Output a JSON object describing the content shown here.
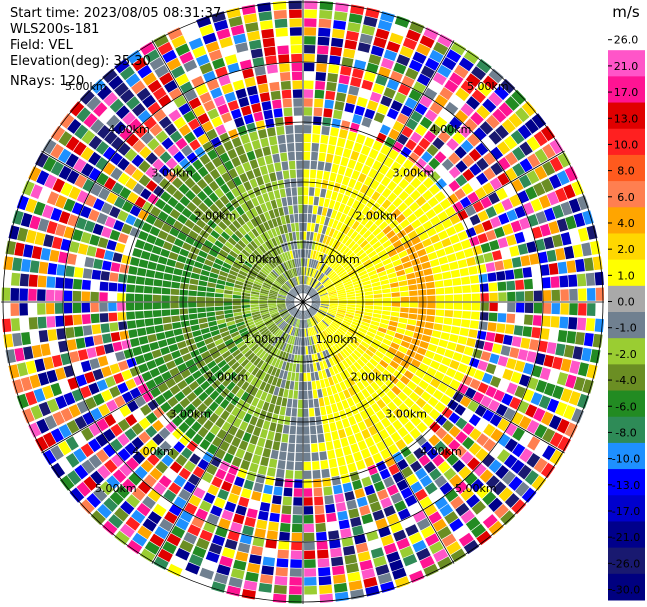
{
  "header": {
    "start_time": "Start time: 2023/08/05 08:31:37",
    "instrument": "WLS200s-181",
    "field": "Field: VEL",
    "elevation": "Elevation(deg): 35.30",
    "nrays": "NRays: 120"
  },
  "range_rings": [
    "1.00km",
    "2.00km",
    "3.00km",
    "4.00km",
    "5.00km"
  ],
  "colorbar": {
    "unit": "m/s",
    "ticks": [
      "26.0",
      "21.0",
      "17.0",
      "13.0",
      "10.0",
      "8.0",
      "6.0",
      "4.0",
      "2.0",
      "1.0",
      "0.0",
      "-1.0",
      "-2.0",
      "-4.0",
      "-6.0",
      "-8.0",
      "-10.0",
      "-13.0",
      "-17.0",
      "-21.0",
      "-26.0",
      "-30.0"
    ],
    "colors": [
      "#ffffff",
      "#ff55c8",
      "#ff1493",
      "#e00000",
      "#ff2020",
      "#ff5a1e",
      "#ff7f50",
      "#ffa500",
      "#ffd700",
      "#ffff00",
      "#a9a9a9",
      "#708090",
      "#9acd32",
      "#6b8e23",
      "#228b22",
      "#2e8b57",
      "#1e90ff",
      "#0000ff",
      "#0000cd",
      "#00008b",
      "#191970",
      "#000080"
    ]
  },
  "legend": {
    "colorbar_label": "m/s"
  }
}
